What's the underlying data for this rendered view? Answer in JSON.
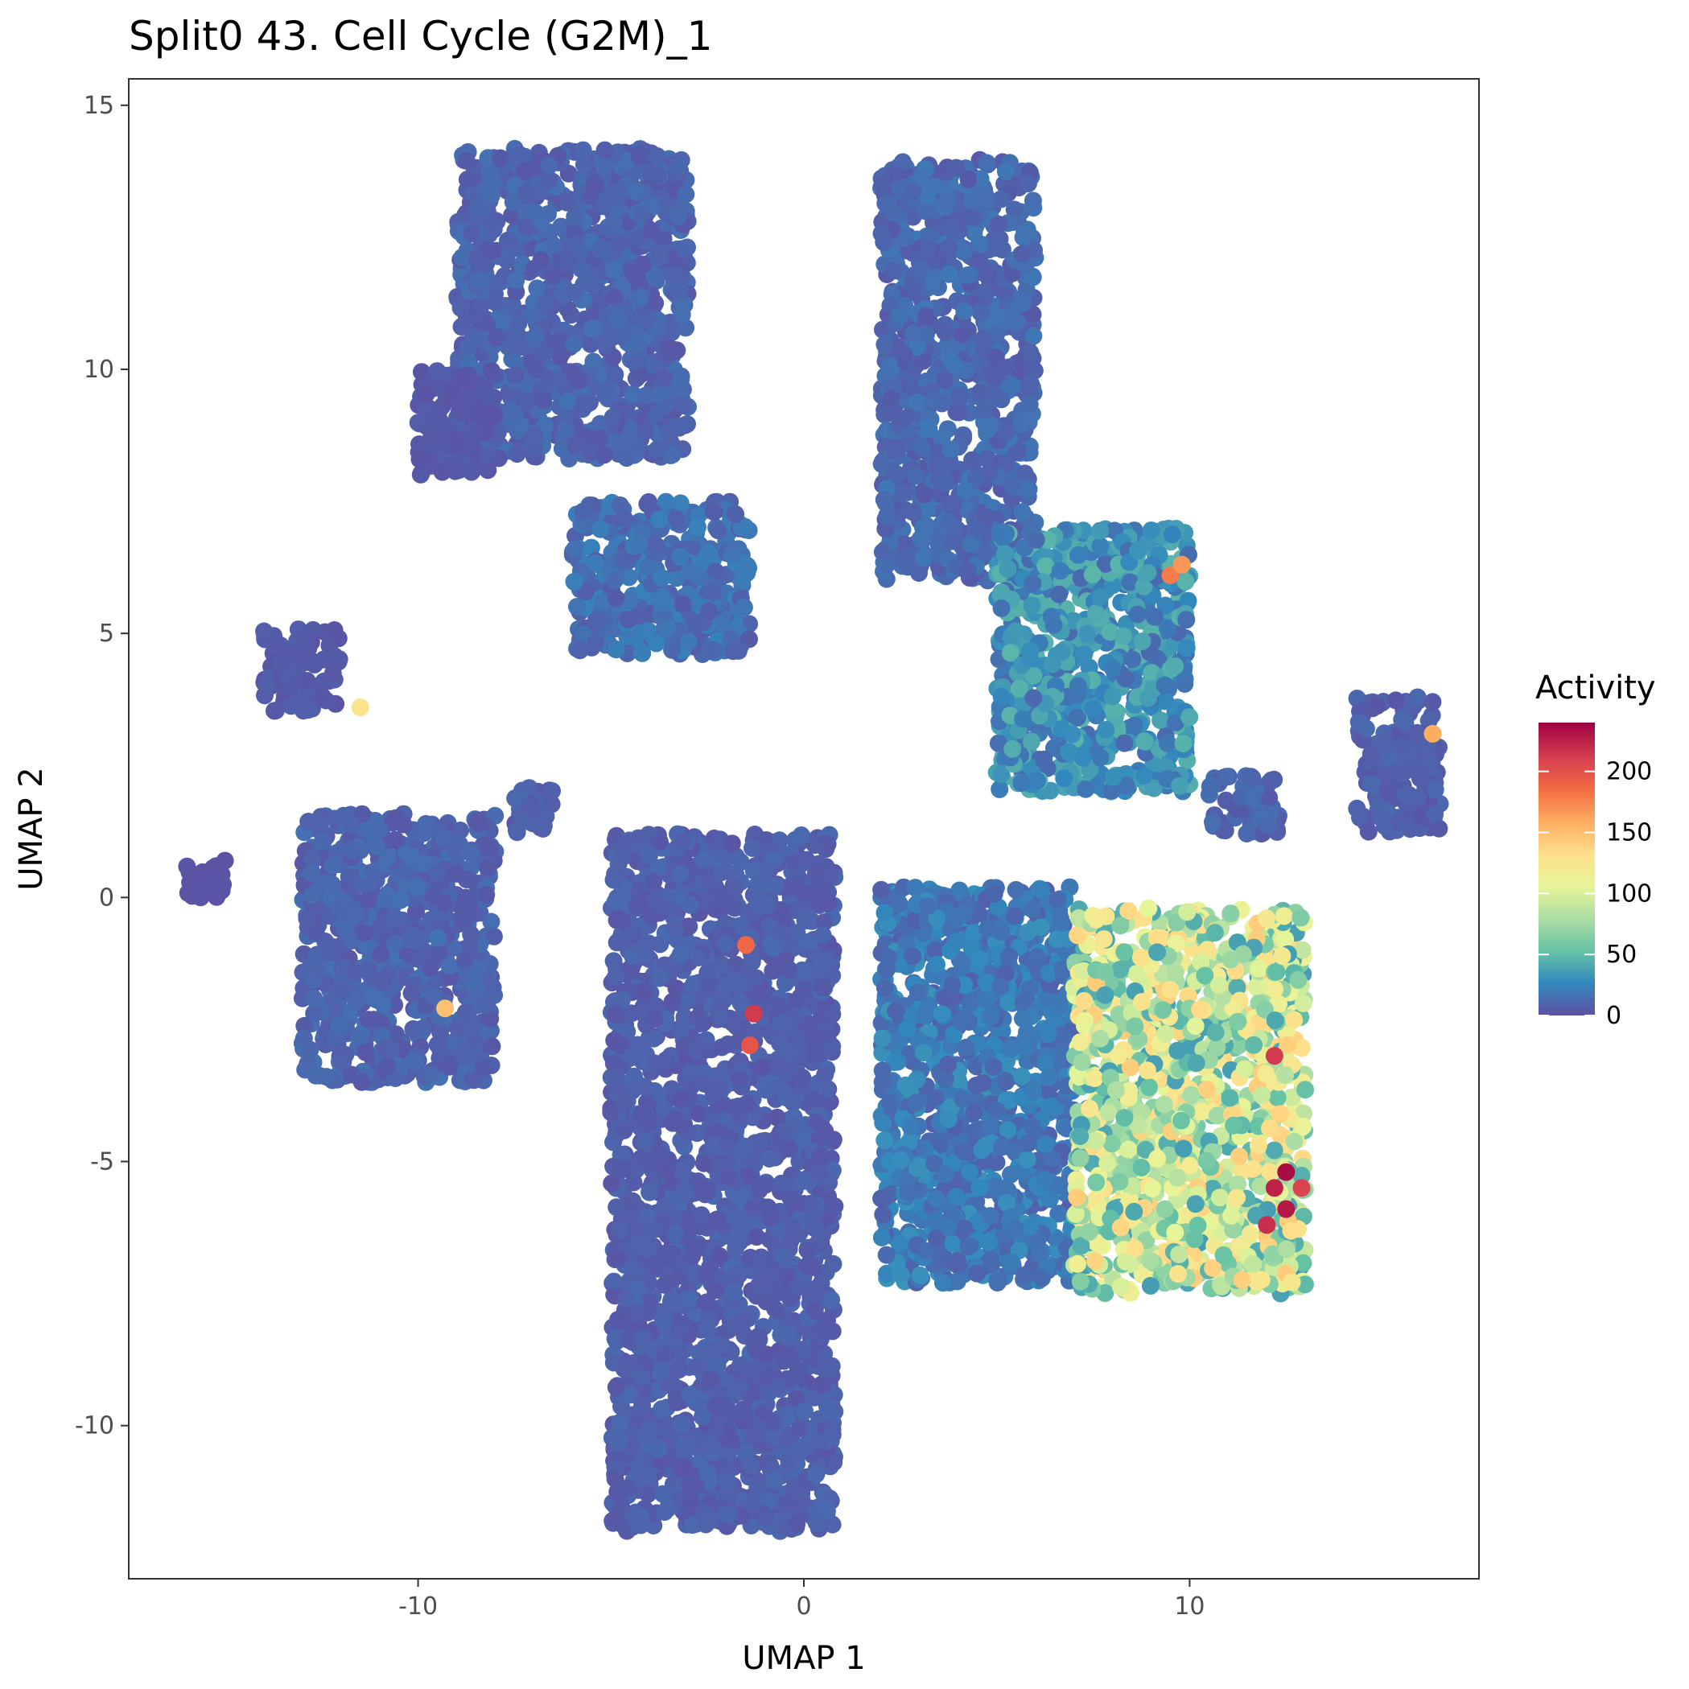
{
  "chart_data": {
    "type": "scatter",
    "title": "Split0 43. Cell Cycle (G2M)_1",
    "xlabel": "UMAP 1",
    "ylabel": "UMAP 2",
    "xlim": [
      -17.5,
      17.5
    ],
    "ylim": [
      -12.9,
      15.5
    ],
    "x_ticks": [
      -10,
      0,
      10
    ],
    "x_tick_labels": [
      "-10",
      "0",
      "10"
    ],
    "y_ticks": [
      -10,
      -5,
      0,
      5,
      10,
      15
    ],
    "y_tick_labels": [
      "-10",
      "-5",
      "0",
      "5",
      "10",
      "15"
    ],
    "grid": false,
    "color_variable": "Activity",
    "color_scale": {
      "name": "Spectral (reversed)",
      "range": [
        0,
        240
      ],
      "colors": [
        "#5E4FA2",
        "#3288BD",
        "#66C2A5",
        "#ABDDA4",
        "#E6F598",
        "#FEE08B",
        "#FDAE61",
        "#F46D43",
        "#D53E4F",
        "#9E0142"
      ]
    },
    "legend": {
      "title": "Activity",
      "position": "right",
      "ticks": [
        0,
        50,
        100,
        150,
        200
      ],
      "tick_labels": [
        "0",
        "50",
        "100",
        "150",
        "200"
      ]
    },
    "clusters": [
      {
        "x": [
          -9,
          -3
        ],
        "y": [
          8.3,
          14.2
        ],
        "activity": 10
      },
      {
        "x": [
          -6,
          -1.4
        ],
        "y": [
          4.6,
          7.5
        ],
        "activity": 15
      },
      {
        "x": [
          -10,
          -8
        ],
        "y": [
          8,
          10
        ],
        "activity": 5
      },
      {
        "x": [
          2,
          6
        ],
        "y": [
          6,
          14
        ],
        "activity": 12
      },
      {
        "x": [
          5,
          10
        ],
        "y": [
          2,
          7
        ],
        "activity": 30
      },
      {
        "x": [
          -14,
          -12
        ],
        "y": [
          3.5,
          5.1
        ],
        "activity": 5
      },
      {
        "x": [
          -13,
          -8
        ],
        "y": [
          -3.5,
          1.6
        ],
        "activity": 10
      },
      {
        "x": [
          -5,
          0.8
        ],
        "y": [
          -12,
          1.2
        ],
        "activity": 8
      },
      {
        "x": [
          2,
          7
        ],
        "y": [
          -7.3,
          0.2
        ],
        "activity": 20
      },
      {
        "x": [
          7,
          13
        ],
        "y": [
          -7.5,
          -0.2
        ],
        "activity": 90
      },
      {
        "x": [
          14.3,
          16.5
        ],
        "y": [
          1.2,
          3.8
        ],
        "activity": 8
      },
      {
        "x": [
          10.5,
          12.5
        ],
        "y": [
          1.2,
          2.3
        ],
        "activity": 10
      },
      {
        "x": [
          -16,
          -15
        ],
        "y": [
          0,
          0.7
        ],
        "activity": 2
      },
      {
        "x": [
          -7.5,
          -6.5
        ],
        "y": [
          1.2,
          2.1
        ],
        "activity": 8
      }
    ],
    "highlight_points": [
      {
        "x": 9.5,
        "y": 6.1,
        "activity": 180
      },
      {
        "x": 9.8,
        "y": 6.3,
        "activity": 170
      },
      {
        "x": 12.5,
        "y": -5.2,
        "activity": 235
      },
      {
        "x": 12.2,
        "y": -5.5,
        "activity": 225
      },
      {
        "x": 12.2,
        "y": -3.0,
        "activity": 215
      },
      {
        "x": 12.0,
        "y": -6.2,
        "activity": 220
      },
      {
        "x": 12.5,
        "y": -5.9,
        "activity": 230
      },
      {
        "x": 12.9,
        "y": -5.5,
        "activity": 210
      },
      {
        "x": -1.3,
        "y": -2.2,
        "activity": 215
      },
      {
        "x": -1.4,
        "y": -2.8,
        "activity": 200
      },
      {
        "x": -1.5,
        "y": -0.9,
        "activity": 190
      },
      {
        "x": 16.3,
        "y": 3.1,
        "activity": 160
      },
      {
        "x": -11.5,
        "y": 3.6,
        "activity": 130
      },
      {
        "x": -9.3,
        "y": -2.1,
        "activity": 150
      }
    ]
  }
}
